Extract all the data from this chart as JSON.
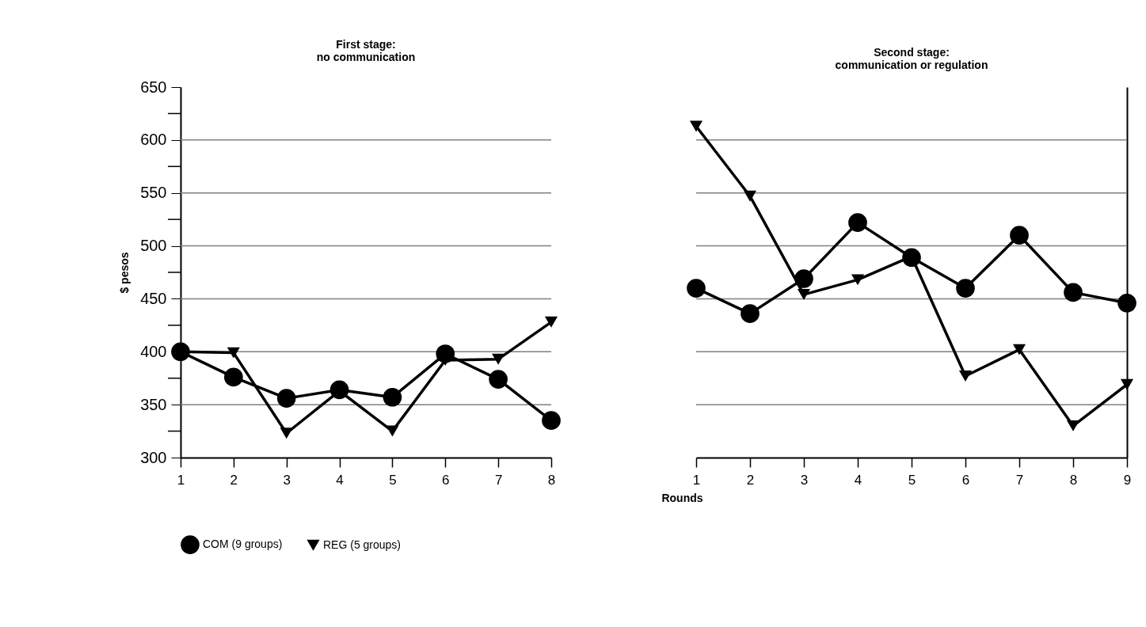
{
  "chart_data": [
    {
      "type": "line",
      "title": "First stage:\nno communication",
      "ylabel": "$ pesos",
      "categories": [
        "1",
        "2",
        "3",
        "4",
        "5",
        "6",
        "7",
        "8"
      ],
      "ylim": [
        300,
        650
      ],
      "yticks": [
        300,
        {
          "value": 325,
          "label": null
        },
        350,
        {
          "value": 375,
          "label": null
        },
        400,
        {
          "value": 425,
          "label": null
        },
        450,
        {
          "value": 475,
          "label": null
        },
        500,
        {
          "value": 525,
          "label": null
        },
        550,
        {
          "value": 575,
          "label": null
        },
        600,
        {
          "value": 625,
          "label": null
        },
        650
      ],
      "grid": "y",
      "legend": "bottom",
      "series": [
        {
          "name": "COM (9 groups)",
          "color": "#000000",
          "marker": "circle",
          "values": [
            400,
            376,
            356,
            364,
            357,
            398,
            374,
            335
          ]
        },
        {
          "name": "REG (5 groups)",
          "color": "#000000",
          "marker": "triangle",
          "values": [
            400,
            399,
            323,
            363,
            325,
            392,
            393,
            428
          ]
        }
      ]
    },
    {
      "type": "line",
      "title": "Second stage:\ncommunication or regulation",
      "xlabel": "Rounds",
      "categories": [
        "1",
        "2",
        "3",
        "4",
        "5",
        "6",
        "7",
        "8",
        "9"
      ],
      "ylim": [
        300,
        650
      ],
      "yticks": [
        300,
        350,
        400,
        450,
        500,
        550,
        600,
        650
      ],
      "tick_labels": "x",
      "grid": "y",
      "legend": "bottom",
      "series": [
        {
          "name": "COM (9 groups)",
          "color": "#000000",
          "marker": "circle",
          "values": [
            460,
            436,
            469,
            522,
            489,
            460,
            510,
            456,
            446
          ]
        },
        {
          "name": "REG (5 groups)",
          "color": "#000000",
          "marker": "triangle",
          "values": [
            613,
            547,
            454,
            468,
            490,
            377,
            402,
            330,
            369
          ]
        }
      ]
    }
  ]
}
